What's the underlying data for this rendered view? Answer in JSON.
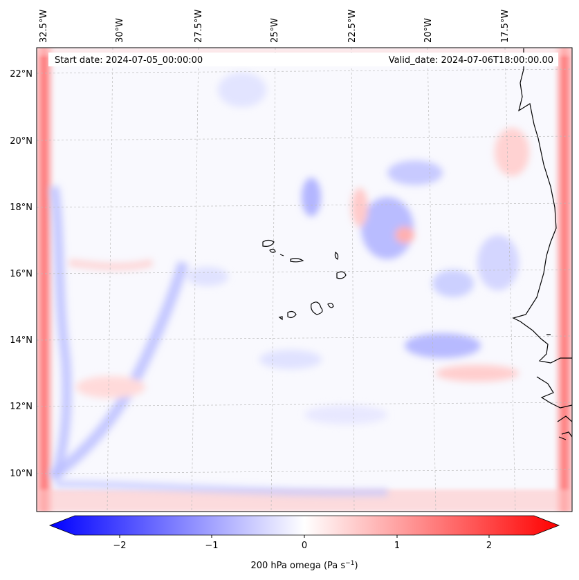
{
  "map": {
    "start_date": "Start date: 2024-07-05_00:00:00",
    "valid_date": "Valid_date: 2024-07-06T18:00:00.00",
    "lon_labels": [
      "32.5°W",
      "30°W",
      "27.5°W",
      "25°W",
      "22.5°W",
      "20°W",
      "17.5°W"
    ],
    "lat_labels": [
      "22°N",
      "20°N",
      "18°N",
      "16°N",
      "14°N",
      "12°N",
      "10°N"
    ],
    "colors": {
      "negative": "#0000ff",
      "zero": "#ffffff",
      "positive": "#ff0000",
      "grid": "#bbbbbb",
      "coast": "#000000"
    }
  },
  "colorbar": {
    "ticks": [
      "−2",
      "−1",
      "0",
      "1",
      "2"
    ],
    "label": "200 hPa omega (Pa s",
    "label_sup": "−1",
    "label_end": ")"
  }
}
